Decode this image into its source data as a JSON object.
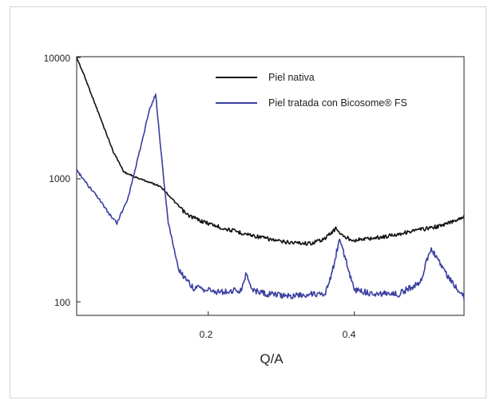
{
  "chart_data": {
    "type": "line",
    "xlabel": "Q/A",
    "ylabel": "",
    "xlim": [
      0.02,
      0.55
    ],
    "ylim": [
      80,
      10000
    ],
    "yscale": "log",
    "x_ticks": [
      "0.2",
      "0.4"
    ],
    "y_ticks": [
      "10000",
      "1000",
      "100"
    ],
    "grid": false,
    "legend_position": "top-right",
    "series": [
      {
        "name": "Piel nativa",
        "color": "#111111",
        "x": [
          0.02,
          0.03,
          0.05,
          0.07,
          0.085,
          0.1,
          0.12,
          0.135,
          0.15,
          0.17,
          0.19,
          0.22,
          0.26,
          0.3,
          0.34,
          0.36,
          0.375,
          0.385,
          0.4,
          0.44,
          0.48,
          0.52,
          0.55
        ],
        "values": [
          10000,
          7200,
          3500,
          1700,
          1150,
          1050,
          950,
          880,
          700,
          520,
          460,
          400,
          350,
          310,
          300,
          330,
          400,
          340,
          320,
          340,
          380,
          420,
          500
        ]
      },
      {
        "name": "Piel tratada con Bicosome® FS",
        "color": "#3a3fa0",
        "x": [
          0.02,
          0.035,
          0.05,
          0.065,
          0.075,
          0.09,
          0.105,
          0.12,
          0.128,
          0.135,
          0.145,
          0.16,
          0.18,
          0.22,
          0.245,
          0.252,
          0.26,
          0.28,
          0.32,
          0.36,
          0.37,
          0.38,
          0.39,
          0.4,
          0.42,
          0.46,
          0.49,
          0.505,
          0.52,
          0.54,
          0.55
        ],
        "values": [
          1200,
          900,
          700,
          520,
          440,
          700,
          1600,
          3800,
          5000,
          1800,
          450,
          180,
          130,
          120,
          125,
          170,
          125,
          115,
          112,
          118,
          180,
          330,
          200,
          125,
          118,
          115,
          145,
          280,
          190,
          130,
          110
        ]
      }
    ]
  },
  "colors": {
    "native": "#111111",
    "treated": "#3a3fa0"
  }
}
